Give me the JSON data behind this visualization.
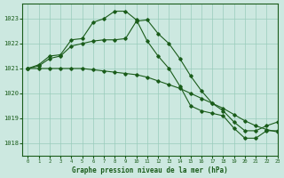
{
  "background_color": "#cce8e0",
  "grid_color": "#99ccbb",
  "line_color": "#1a5c1a",
  "title": "Graphe pression niveau de la mer (hPa)",
  "xlim": [
    -0.5,
    23
  ],
  "ylim": [
    1017.5,
    1023.6
  ],
  "yticks": [
    1018,
    1019,
    1020,
    1021,
    1022,
    1023
  ],
  "xticks": [
    0,
    1,
    2,
    3,
    4,
    5,
    6,
    7,
    8,
    9,
    10,
    11,
    12,
    13,
    14,
    15,
    16,
    17,
    18,
    19,
    20,
    21,
    22,
    23
  ],
  "series1_x": [
    0,
    1,
    2,
    3,
    4,
    5,
    6,
    7,
    8,
    9,
    10,
    11,
    12,
    13,
    14,
    15,
    16,
    17,
    18,
    19,
    20,
    21,
    22,
    23
  ],
  "series1_y": [
    1021.0,
    1021.15,
    1021.5,
    1021.55,
    1022.15,
    1022.2,
    1022.85,
    1023.0,
    1023.3,
    1023.3,
    1022.95,
    1022.1,
    1021.5,
    1021.0,
    1020.3,
    1019.5,
    1019.3,
    1019.2,
    1019.1,
    1018.6,
    1018.2,
    1018.2,
    1018.5,
    1018.5
  ],
  "series2_x": [
    0,
    1,
    2,
    3,
    4,
    5,
    6,
    7,
    8,
    9,
    10,
    11,
    12,
    13,
    14,
    15,
    16,
    17,
    18,
    19,
    20,
    21,
    22,
    23
  ],
  "series2_y": [
    1021.0,
    1021.1,
    1021.4,
    1021.5,
    1021.9,
    1022.0,
    1022.1,
    1022.15,
    1022.15,
    1022.2,
    1022.9,
    1022.95,
    1022.4,
    1022.0,
    1021.4,
    1020.7,
    1020.1,
    1019.6,
    1019.3,
    1018.85,
    1018.5,
    1018.5,
    1018.7,
    1018.85
  ],
  "series3_x": [
    0,
    1,
    2,
    3,
    4,
    5,
    6,
    7,
    8,
    9,
    10,
    11,
    12,
    13,
    14,
    15,
    16,
    17,
    18,
    19,
    20,
    21,
    22,
    23
  ],
  "series3_y": [
    1021.0,
    1021.0,
    1021.0,
    1021.0,
    1021.0,
    1021.0,
    1020.95,
    1020.9,
    1020.85,
    1020.8,
    1020.75,
    1020.65,
    1020.5,
    1020.35,
    1020.2,
    1020.0,
    1019.8,
    1019.6,
    1019.4,
    1019.15,
    1018.9,
    1018.7,
    1018.55,
    1018.45
  ]
}
